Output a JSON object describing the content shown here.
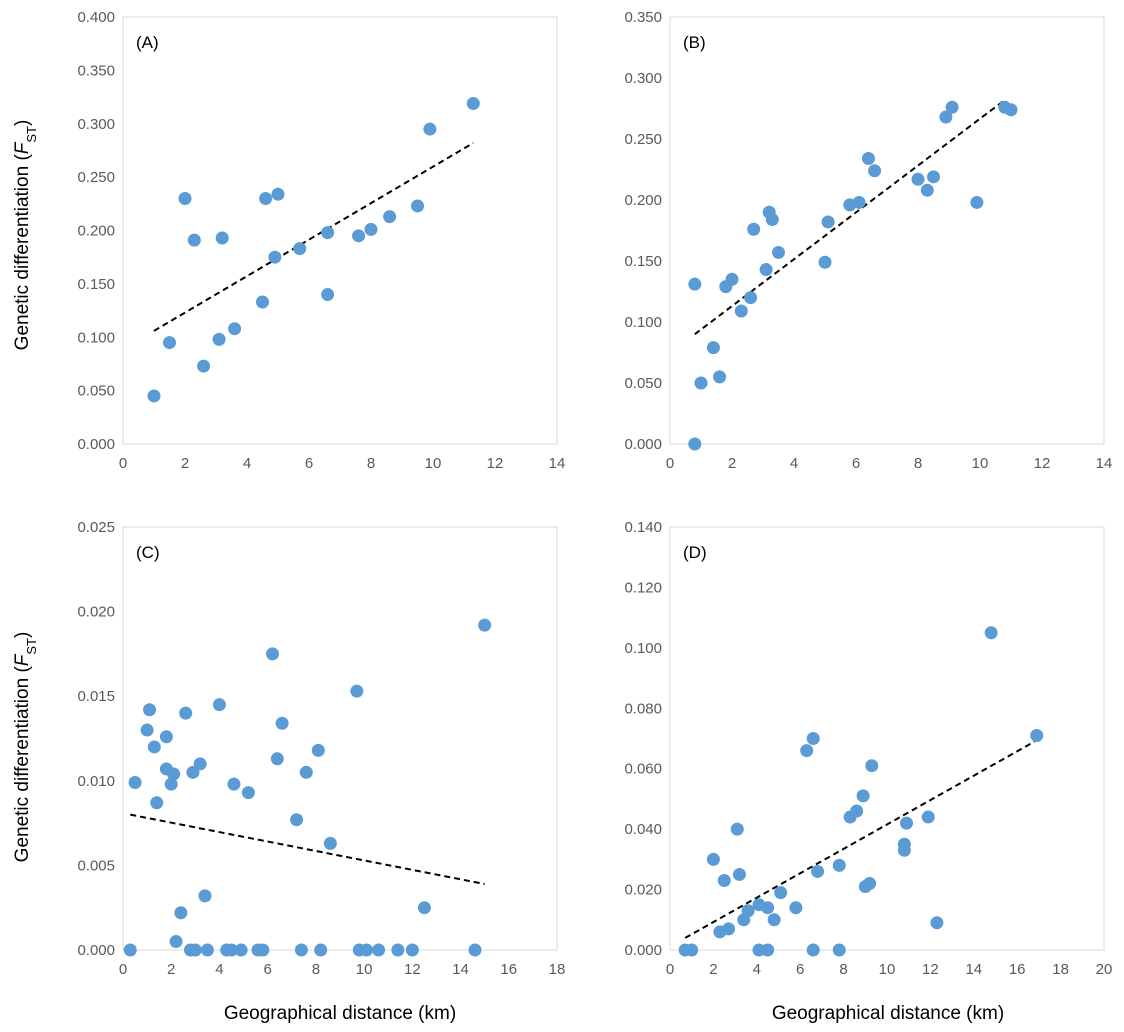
{
  "figure": {
    "ylabel_main": "Genetic differentiation (",
    "ylabel_italic": "F",
    "ylabel_sub": "ST",
    "ylabel_close": ")",
    "xlabel": "Geographical distance (km)",
    "point_color": "#5b9bd5",
    "trend_color": "#000000"
  },
  "chart_data": [
    {
      "type": "scatter",
      "panel_label": "(A)",
      "xlim": [
        0,
        14
      ],
      "xticks": [
        0,
        2,
        4,
        6,
        8,
        10,
        12,
        14
      ],
      "ylim": [
        0,
        0.4
      ],
      "yticks": [
        0,
        0.05,
        0.1,
        0.15,
        0.2,
        0.25,
        0.3,
        0.35,
        0.4
      ],
      "ydecimals": 3,
      "grid": false,
      "trendline": [
        [
          1.0,
          0.106
        ],
        [
          11.3,
          0.282
        ]
      ],
      "points": [
        [
          1.0,
          0.045
        ],
        [
          1.5,
          0.095
        ],
        [
          2.0,
          0.23
        ],
        [
          2.3,
          0.191
        ],
        [
          2.6,
          0.073
        ],
        [
          3.1,
          0.098
        ],
        [
          3.2,
          0.193
        ],
        [
          3.6,
          0.108
        ],
        [
          4.5,
          0.133
        ],
        [
          4.6,
          0.23
        ],
        [
          4.9,
          0.175
        ],
        [
          5.0,
          0.234
        ],
        [
          5.7,
          0.183
        ],
        [
          6.6,
          0.198
        ],
        [
          6.6,
          0.14
        ],
        [
          7.6,
          0.195
        ],
        [
          8.0,
          0.201
        ],
        [
          8.6,
          0.213
        ],
        [
          9.5,
          0.223
        ],
        [
          9.9,
          0.295
        ],
        [
          11.3,
          0.319
        ]
      ]
    },
    {
      "type": "scatter",
      "panel_label": "(B)",
      "xlim": [
        0,
        14
      ],
      "xticks": [
        0,
        2,
        4,
        6,
        8,
        10,
        12,
        14
      ],
      "ylim": [
        0,
        0.35
      ],
      "yticks": [
        0,
        0.05,
        0.1,
        0.15,
        0.2,
        0.25,
        0.3,
        0.35
      ],
      "ydecimals": 3,
      "grid": false,
      "trendline": [
        [
          0.8,
          0.09
        ],
        [
          10.8,
          0.282
        ]
      ],
      "points": [
        [
          0.8,
          0.131
        ],
        [
          0.8,
          0.0
        ],
        [
          1.0,
          0.05
        ],
        [
          1.4,
          0.079
        ],
        [
          1.6,
          0.055
        ],
        [
          1.8,
          0.129
        ],
        [
          2.0,
          0.135
        ],
        [
          2.3,
          0.109
        ],
        [
          2.6,
          0.12
        ],
        [
          2.7,
          0.176
        ],
        [
          3.1,
          0.143
        ],
        [
          3.2,
          0.19
        ],
        [
          3.3,
          0.184
        ],
        [
          3.5,
          0.157
        ],
        [
          5.0,
          0.149
        ],
        [
          5.1,
          0.182
        ],
        [
          5.8,
          0.196
        ],
        [
          6.1,
          0.198
        ],
        [
          6.4,
          0.234
        ],
        [
          6.6,
          0.224
        ],
        [
          8.0,
          0.217
        ],
        [
          8.3,
          0.208
        ],
        [
          8.5,
          0.219
        ],
        [
          8.9,
          0.268
        ],
        [
          9.1,
          0.276
        ],
        [
          9.9,
          0.198
        ],
        [
          10.8,
          0.276
        ],
        [
          11.0,
          0.274
        ]
      ]
    },
    {
      "type": "scatter",
      "panel_label": "(C)",
      "xlim": [
        0,
        18
      ],
      "xticks": [
        0,
        2,
        4,
        6,
        8,
        10,
        12,
        14,
        16,
        18
      ],
      "ylim": [
        0,
        0.025
      ],
      "yticks": [
        0,
        0.005,
        0.01,
        0.015,
        0.02,
        0.025
      ],
      "ydecimals": 3,
      "grid": false,
      "trendline": [
        [
          0.3,
          0.008
        ],
        [
          15.0,
          0.0039
        ]
      ],
      "points": [
        [
          0.3,
          0.0
        ],
        [
          0.5,
          0.0099
        ],
        [
          1.0,
          0.013
        ],
        [
          1.1,
          0.0142
        ],
        [
          1.3,
          0.012
        ],
        [
          1.4,
          0.0087
        ],
        [
          1.8,
          0.0126
        ],
        [
          1.8,
          0.0107
        ],
        [
          2.0,
          0.0098
        ],
        [
          2.1,
          0.0104
        ],
        [
          2.2,
          0.0005
        ],
        [
          2.4,
          0.0022
        ],
        [
          2.6,
          0.014
        ],
        [
          2.8,
          0.0
        ],
        [
          2.9,
          0.0105
        ],
        [
          3.0,
          0.0
        ],
        [
          3.2,
          0.011
        ],
        [
          3.4,
          0.0032
        ],
        [
          3.5,
          0.0
        ],
        [
          4.0,
          0.0145
        ],
        [
          4.3,
          0.0
        ],
        [
          4.5,
          0.0
        ],
        [
          4.6,
          0.0098
        ],
        [
          4.9,
          0.0
        ],
        [
          5.2,
          0.0093
        ],
        [
          5.6,
          0.0
        ],
        [
          5.8,
          0.0
        ],
        [
          6.2,
          0.0175
        ],
        [
          6.4,
          0.0113
        ],
        [
          6.6,
          0.0134
        ],
        [
          7.2,
          0.0077
        ],
        [
          7.4,
          0.0
        ],
        [
          7.6,
          0.0105
        ],
        [
          8.1,
          0.0118
        ],
        [
          8.2,
          0.0
        ],
        [
          8.6,
          0.0063
        ],
        [
          9.7,
          0.0153
        ],
        [
          9.8,
          0.0
        ],
        [
          10.1,
          0.0
        ],
        [
          10.6,
          0.0
        ],
        [
          11.4,
          0.0
        ],
        [
          12.0,
          0.0
        ],
        [
          12.5,
          0.0025
        ],
        [
          14.6,
          0.0
        ],
        [
          15.0,
          0.0192
        ]
      ]
    },
    {
      "type": "scatter",
      "panel_label": "(D)",
      "xlim": [
        0,
        20
      ],
      "xticks": [
        0,
        2,
        4,
        6,
        8,
        10,
        12,
        14,
        16,
        18,
        20
      ],
      "ylim": [
        0,
        0.14
      ],
      "yticks": [
        0,
        0.02,
        0.04,
        0.06,
        0.08,
        0.1,
        0.12,
        0.14
      ],
      "ydecimals": 3,
      "grid": false,
      "trendline": [
        [
          0.7,
          0.004
        ],
        [
          16.8,
          0.069
        ]
      ],
      "points": [
        [
          0.7,
          0.0
        ],
        [
          1.0,
          0.0
        ],
        [
          2.0,
          0.03
        ],
        [
          2.3,
          0.006
        ],
        [
          2.5,
          0.023
        ],
        [
          2.7,
          0.007
        ],
        [
          3.1,
          0.04
        ],
        [
          3.2,
          0.025
        ],
        [
          3.4,
          0.01
        ],
        [
          3.6,
          0.013
        ],
        [
          4.1,
          0.015
        ],
        [
          4.1,
          0.0
        ],
        [
          4.5,
          0.014
        ],
        [
          4.5,
          0.0
        ],
        [
          4.8,
          0.01
        ],
        [
          5.1,
          0.019
        ],
        [
          5.8,
          0.014
        ],
        [
          6.3,
          0.066
        ],
        [
          6.6,
          0.07
        ],
        [
          6.6,
          0.0
        ],
        [
          6.8,
          0.026
        ],
        [
          7.8,
          0.028
        ],
        [
          7.8,
          0.0
        ],
        [
          8.3,
          0.044
        ],
        [
          8.6,
          0.046
        ],
        [
          8.9,
          0.051
        ],
        [
          9.0,
          0.021
        ],
        [
          9.2,
          0.022
        ],
        [
          9.3,
          0.061
        ],
        [
          10.8,
          0.033
        ],
        [
          10.8,
          0.035
        ],
        [
          10.9,
          0.042
        ],
        [
          11.9,
          0.044
        ],
        [
          12.3,
          0.009
        ],
        [
          14.8,
          0.105
        ],
        [
          16.9,
          0.071
        ]
      ]
    }
  ]
}
